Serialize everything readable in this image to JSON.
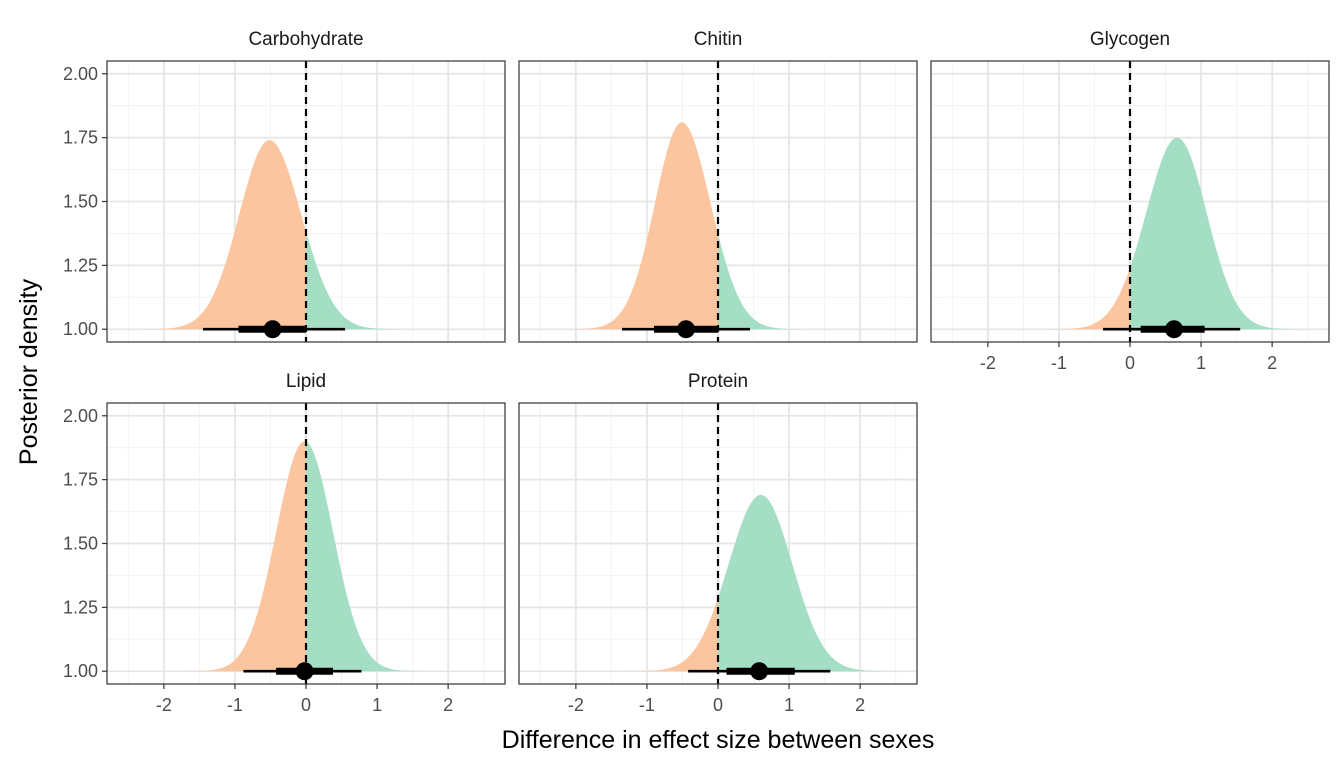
{
  "chart_data": {
    "type": "density",
    "xlabel": "Difference in effect size between sexes",
    "ylabel": "Posterior density",
    "xlim": [
      -2.8,
      2.8
    ],
    "ylim": [
      0.95,
      2.05
    ],
    "x_ticks": [
      -2,
      -1,
      0,
      1,
      2
    ],
    "x_tick_labels": [
      "-2",
      "-1",
      "0",
      "1",
      "2"
    ],
    "y_ticks": [
      1.0,
      1.25,
      1.5,
      1.75,
      2.0
    ],
    "y_tick_labels": [
      "1.00",
      "1.25",
      "1.50",
      "1.75",
      "2.00"
    ],
    "reference_line_x": 0,
    "grid": true,
    "fill_colors": {
      "below_zero": "#fbc69f",
      "above_zero": "#a4dec4"
    },
    "panels": [
      {
        "label": "Carbohydrate",
        "mean": -0.47,
        "sd": 0.44,
        "peak": 1.74,
        "skew": -0.1,
        "point": -0.47,
        "interval_66": [
          -0.95,
          0.0
        ],
        "interval_95": [
          -1.45,
          0.55
        ]
      },
      {
        "label": "Chitin",
        "mean": -0.45,
        "sd": 0.4,
        "peak": 1.81,
        "skew": -0.15,
        "point": -0.45,
        "interval_66": [
          -0.9,
          -0.0
        ],
        "interval_95": [
          -1.35,
          0.45
        ]
      },
      {
        "label": "Glycogen",
        "mean": 0.62,
        "sd": 0.43,
        "peak": 1.75,
        "skew": 0.1,
        "point": 0.62,
        "interval_66": [
          0.15,
          1.05
        ],
        "interval_95": [
          -0.38,
          1.55
        ]
      },
      {
        "label": "Lipid",
        "mean": -0.02,
        "sd": 0.4,
        "peak": 1.9,
        "skew": 0.0,
        "point": -0.02,
        "interval_66": [
          -0.42,
          0.38
        ],
        "interval_95": [
          -0.88,
          0.78
        ]
      },
      {
        "label": "Protein",
        "mean": 0.58,
        "sd": 0.45,
        "peak": 1.69,
        "skew": 0.05,
        "point": 0.58,
        "interval_66": [
          0.12,
          1.08
        ],
        "interval_95": [
          -0.42,
          1.58
        ]
      }
    ]
  }
}
